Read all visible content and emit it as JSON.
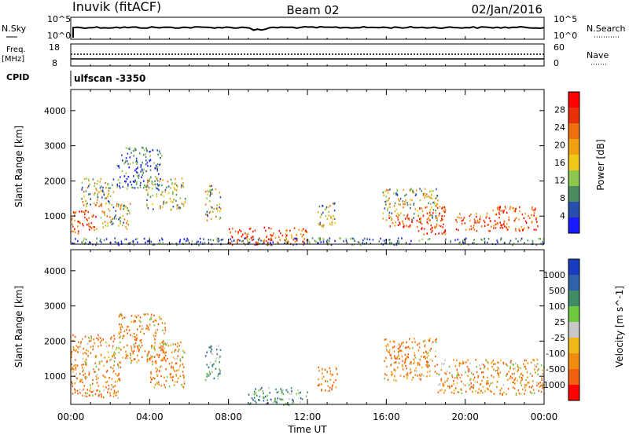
{
  "header": {
    "station": "Inuvik (fitACF)",
    "beam": "Beam 02",
    "date": "02/Jan/2016"
  },
  "strip_labels": {
    "nsky": "N.Sky",
    "nsky_top": "10^5",
    "nsky_bot": "10^0",
    "nsearch": "N.Search",
    "nsearch_top": "10^5",
    "nsearch_bot": "10^0",
    "freq": "Freq.",
    "freq_unit": "[MHz]",
    "freq_top": "18",
    "freq_bot": "8",
    "nave": "Nave",
    "nave_top": "60",
    "nave_bot": "0",
    "cpid": "CPID",
    "cpid_text": "ulfscan -3350"
  },
  "colors": {
    "power_scale": [
      "#1a1aff",
      "#2a4db0",
      "#4a8c60",
      "#8cc850",
      "#f0c818",
      "#f0a010",
      "#f07010",
      "#e83008",
      "#ff0000"
    ],
    "velocity_scale": [
      "#1a3cc0",
      "#2f62a8",
      "#3f8c66",
      "#6ec840",
      "#c8c8c8",
      "#f0b818",
      "#f08c10",
      "#f06010",
      "#ff0000"
    ]
  },
  "chart_data": [
    {
      "type": "heatmap",
      "name": "power",
      "ylabel": "Slant Range [km]",
      "yticks": [
        "1000",
        "2000",
        "3000",
        "4000"
      ],
      "ylim": [
        200,
        4600
      ],
      "xlim": [
        0,
        24
      ],
      "colorbar_label": "Power [dB]",
      "colorbar_ticks": [
        "4",
        "8",
        "12",
        "16",
        "20",
        "24",
        "28"
      ],
      "regions": [
        {
          "t0": 0.0,
          "t1": 1.3,
          "r0": 500,
          "r1": 1200,
          "v": "high"
        },
        {
          "t0": 0.5,
          "t1": 2.2,
          "r0": 1300,
          "r1": 2100,
          "v": "mid"
        },
        {
          "t0": 1.5,
          "t1": 3.0,
          "r0": 600,
          "r1": 1400,
          "v": "mid"
        },
        {
          "t0": 2.3,
          "t1": 4.6,
          "r0": 1800,
          "r1": 3000,
          "v": "low"
        },
        {
          "t0": 3.8,
          "t1": 5.8,
          "r0": 1200,
          "r1": 2100,
          "v": "mid"
        },
        {
          "t0": 6.8,
          "t1": 7.6,
          "r0": 900,
          "r1": 1900,
          "v": "mid"
        },
        {
          "t0": 8.0,
          "t1": 12.0,
          "r0": 200,
          "r1": 700,
          "v": "high"
        },
        {
          "t0": 12.5,
          "t1": 13.5,
          "r0": 700,
          "r1": 1400,
          "v": "mid"
        },
        {
          "t0": 15.8,
          "t1": 18.6,
          "r0": 900,
          "r1": 1800,
          "v": "mid"
        },
        {
          "t0": 16.0,
          "t1": 17.3,
          "r0": 700,
          "r1": 1100,
          "v": "high"
        },
        {
          "t0": 17.5,
          "t1": 19.0,
          "r0": 500,
          "r1": 1300,
          "v": "high"
        },
        {
          "t0": 19.5,
          "t1": 21.3,
          "r0": 600,
          "r1": 1100,
          "v": "high"
        },
        {
          "t0": 21.3,
          "t1": 23.7,
          "r0": 600,
          "r1": 1300,
          "v": "high"
        },
        {
          "t0": 0.0,
          "t1": 24.0,
          "r0": 200,
          "r1": 400,
          "v": "low"
        }
      ]
    },
    {
      "type": "heatmap",
      "name": "velocity",
      "ylabel": "Slant Range [km]",
      "yticks": [
        "1000",
        "2000",
        "3000",
        "4000"
      ],
      "ylim": [
        200,
        4600
      ],
      "xlim": [
        0,
        24
      ],
      "xlabel": "Time UT",
      "xticks": [
        "00:00",
        "04:00",
        "08:00",
        "12:00",
        "16:00",
        "20:00",
        "00:00"
      ],
      "colorbar_label": "Velocity [m s^-1]",
      "colorbar_ticks": [
        "1000",
        "500",
        "100",
        "25",
        "-25",
        "-100",
        "-500",
        "-1000"
      ],
      "regions": [
        {
          "t0": 0.0,
          "t1": 2.5,
          "r0": 400,
          "r1": 2200,
          "v": "neg"
        },
        {
          "t0": 2.4,
          "t1": 4.8,
          "r0": 1400,
          "r1": 2800,
          "v": "neg"
        },
        {
          "t0": 4.0,
          "t1": 5.8,
          "r0": 700,
          "r1": 2000,
          "v": "neg"
        },
        {
          "t0": 6.8,
          "t1": 7.6,
          "r0": 900,
          "r1": 1900,
          "v": "pos"
        },
        {
          "t0": 9.0,
          "t1": 12.0,
          "r0": 200,
          "r1": 700,
          "v": "pos"
        },
        {
          "t0": 12.5,
          "t1": 13.5,
          "r0": 600,
          "r1": 1300,
          "v": "neg"
        },
        {
          "t0": 15.8,
          "t1": 18.6,
          "r0": 900,
          "r1": 2100,
          "v": "neg"
        },
        {
          "t0": 18.6,
          "t1": 24.0,
          "r0": 500,
          "r1": 1500,
          "v": "neg"
        }
      ]
    }
  ]
}
